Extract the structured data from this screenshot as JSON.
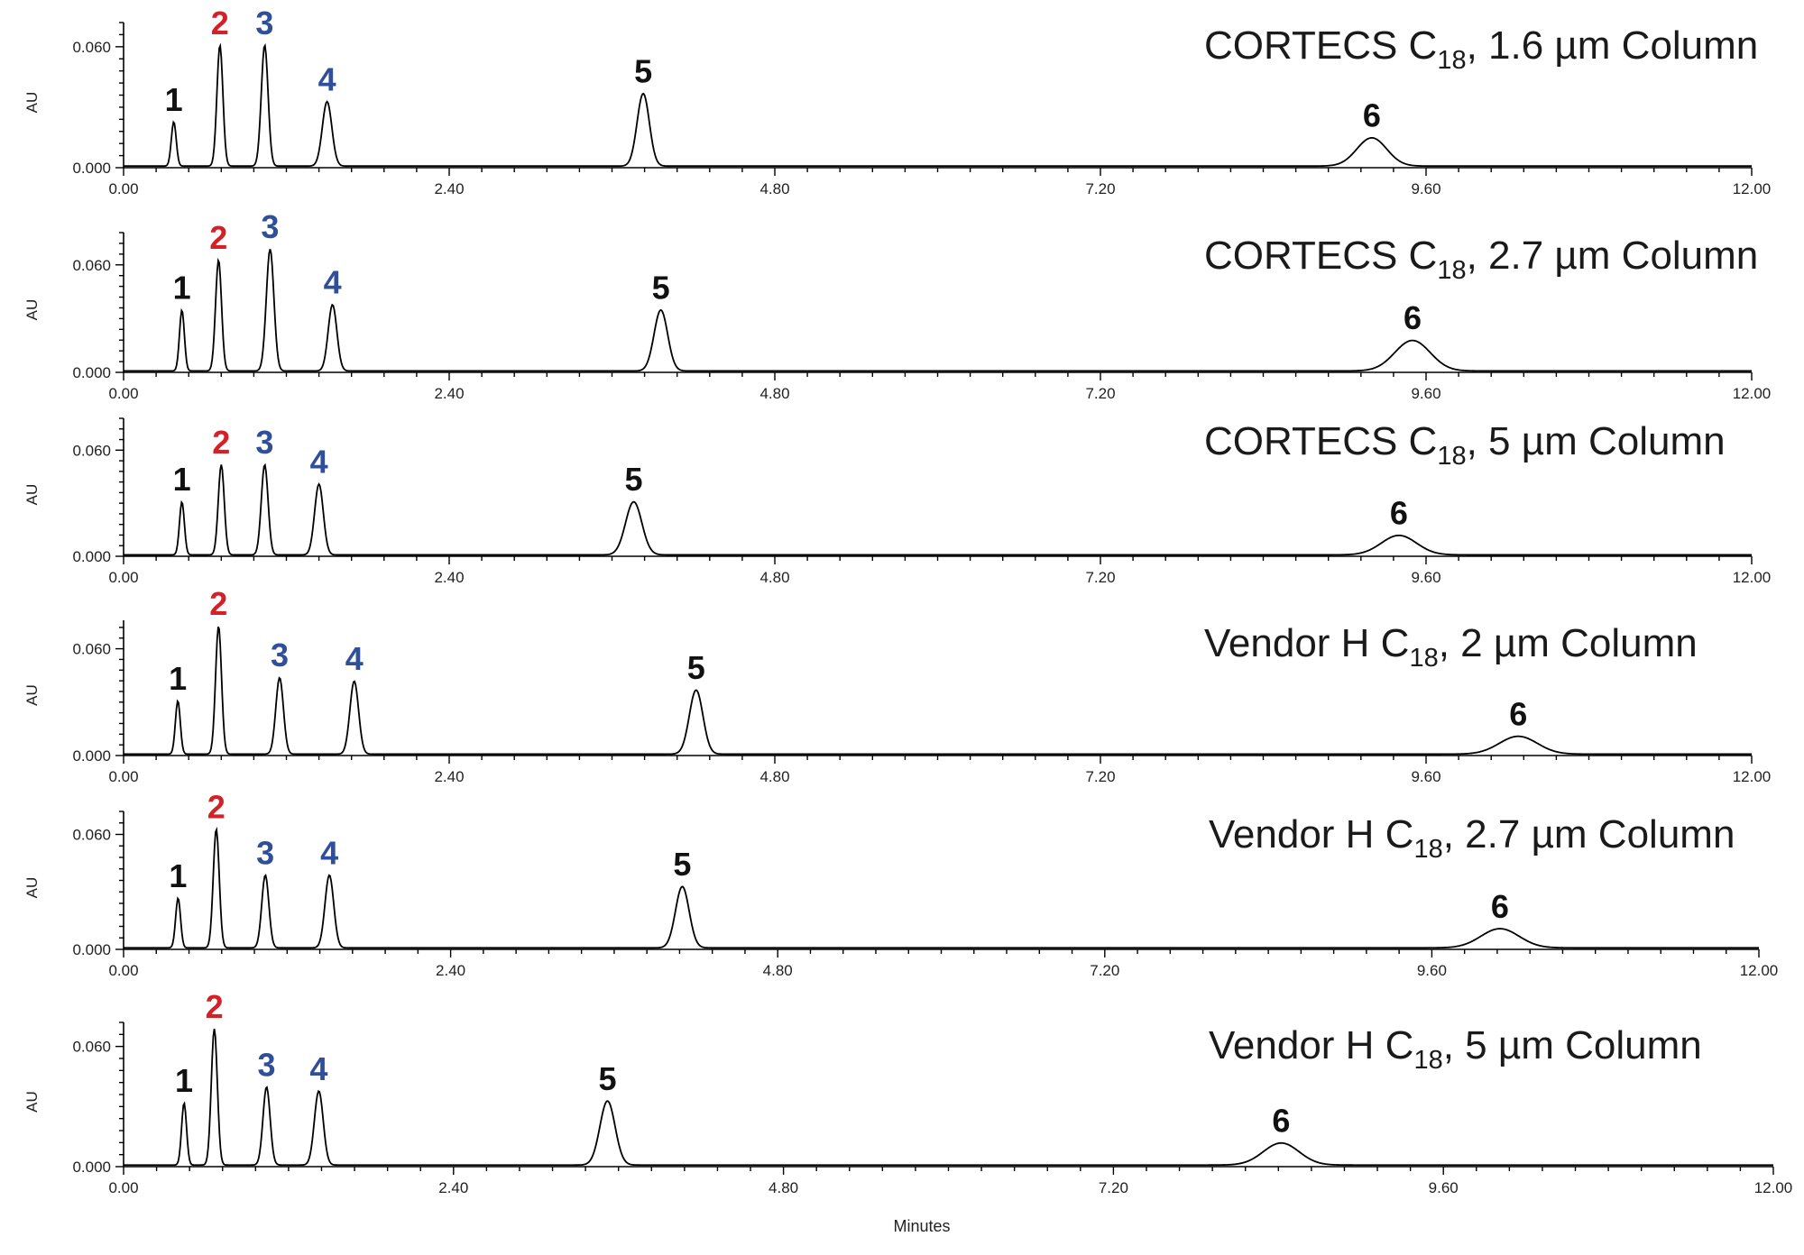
{
  "figure": {
    "xlabel": "Minutes",
    "ylabel": "AU",
    "colors": {
      "black": "#111111",
      "red": "#d42027",
      "blue": "#2f4f9a"
    }
  },
  "chart_data": [
    {
      "type": "line",
      "title": "CORTECS C18, 1.6 µm Column",
      "title_main": "CORTECS C",
      "title_sub": "18",
      "title_rest": ", 1.6 µm Column",
      "ylabel": "AU",
      "xlim": [
        0,
        12
      ],
      "ylim": [
        0,
        0.072
      ],
      "xticks": [
        "0.00",
        "2.40",
        "4.80",
        "7.20",
        "9.60",
        "12.00"
      ],
      "yticks": [
        "0.000",
        "0.060"
      ],
      "peaks": [
        {
          "label": "1",
          "color": "black",
          "rt": 0.37,
          "height": 0.022,
          "width": 0.018
        },
        {
          "label": "2",
          "color": "red",
          "rt": 0.71,
          "height": 0.06,
          "width": 0.022
        },
        {
          "label": "3",
          "color": "blue",
          "rt": 1.04,
          "height": 0.06,
          "width": 0.025
        },
        {
          "label": "4",
          "color": "blue",
          "rt": 1.5,
          "height": 0.032,
          "width": 0.035
        },
        {
          "label": "5",
          "color": "black",
          "rt": 3.83,
          "height": 0.036,
          "width": 0.045
        },
        {
          "label": "6",
          "color": "black",
          "rt": 9.2,
          "height": 0.014,
          "width": 0.11
        }
      ]
    },
    {
      "type": "line",
      "title": "CORTECS C18, 2.7 µm Column",
      "title_main": "CORTECS C",
      "title_sub": "18",
      "title_rest": ", 2.7 µm Column",
      "ylabel": "AU",
      "xlim": [
        0,
        12
      ],
      "ylim": [
        0,
        0.078
      ],
      "xticks": [
        "0.00",
        "2.40",
        "4.80",
        "7.20",
        "9.60",
        "12.00"
      ],
      "yticks": [
        "0.000",
        "0.060"
      ],
      "peaks": [
        {
          "label": "1",
          "color": "black",
          "rt": 0.43,
          "height": 0.034,
          "width": 0.018
        },
        {
          "label": "2",
          "color": "red",
          "rt": 0.7,
          "height": 0.062,
          "width": 0.022
        },
        {
          "label": "3",
          "color": "blue",
          "rt": 1.08,
          "height": 0.068,
          "width": 0.028
        },
        {
          "label": "4",
          "color": "blue",
          "rt": 1.54,
          "height": 0.037,
          "width": 0.032
        },
        {
          "label": "5",
          "color": "black",
          "rt": 3.96,
          "height": 0.034,
          "width": 0.05
        },
        {
          "label": "6",
          "color": "black",
          "rt": 9.5,
          "height": 0.017,
          "width": 0.13
        }
      ]
    },
    {
      "type": "line",
      "title": "CORTECS C18, 5 µm Column",
      "title_main": "CORTECS C",
      "title_sub": "18",
      "title_rest": ", 5 µm Column",
      "ylabel": "AU",
      "xlim": [
        0,
        12
      ],
      "ylim": [
        0,
        0.078
      ],
      "xticks": [
        "0.00",
        "2.40",
        "4.80",
        "7.20",
        "9.60",
        "12.00"
      ],
      "yticks": [
        "0.000",
        "0.060"
      ],
      "peaks": [
        {
          "label": "1",
          "color": "black",
          "rt": 0.43,
          "height": 0.03,
          "width": 0.018
        },
        {
          "label": "2",
          "color": "red",
          "rt": 0.72,
          "height": 0.051,
          "width": 0.022
        },
        {
          "label": "3",
          "color": "blue",
          "rt": 1.04,
          "height": 0.051,
          "width": 0.025
        },
        {
          "label": "4",
          "color": "blue",
          "rt": 1.44,
          "height": 0.04,
          "width": 0.032
        },
        {
          "label": "5",
          "color": "black",
          "rt": 3.76,
          "height": 0.03,
          "width": 0.06
        },
        {
          "label": "6",
          "color": "black",
          "rt": 9.4,
          "height": 0.011,
          "width": 0.13
        }
      ]
    },
    {
      "type": "line",
      "title": "Vendor H C18, 2 µm Column",
      "title_main": "Vendor H C",
      "title_sub": "18",
      "title_rest": ", 2 µm Column",
      "ylabel": "AU",
      "xlim": [
        0,
        12
      ],
      "ylim": [
        0,
        0.076
      ],
      "xticks": [
        "0.00",
        "2.40",
        "4.80",
        "7.20",
        "9.60",
        "12.00"
      ],
      "yticks": [
        "0.000",
        "0.060"
      ],
      "peaks": [
        {
          "label": "1",
          "color": "black",
          "rt": 0.4,
          "height": 0.03,
          "width": 0.018
        },
        {
          "label": "2",
          "color": "red",
          "rt": 0.7,
          "height": 0.072,
          "width": 0.022
        },
        {
          "label": "3",
          "color": "blue",
          "rt": 1.15,
          "height": 0.043,
          "width": 0.028
        },
        {
          "label": "4",
          "color": "blue",
          "rt": 1.7,
          "height": 0.041,
          "width": 0.032
        },
        {
          "label": "5",
          "color": "black",
          "rt": 4.22,
          "height": 0.036,
          "width": 0.05
        },
        {
          "label": "6",
          "color": "black",
          "rt": 10.28,
          "height": 0.01,
          "width": 0.14
        }
      ]
    },
    {
      "type": "line",
      "title": "Vendor H C18, 2.7 µm Column",
      "title_main": "Vendor H C",
      "title_sub": "18",
      "title_rest": ", 2.7 µm Column",
      "ylabel": "AU",
      "xlim": [
        0,
        12
      ],
      "ylim": [
        0,
        0.072
      ],
      "xticks": [
        "0.00",
        "2.40",
        "4.80",
        "7.20",
        "9.60",
        "12.00"
      ],
      "yticks": [
        "0.000",
        "0.060"
      ],
      "peaks": [
        {
          "label": "1",
          "color": "black",
          "rt": 0.4,
          "height": 0.026,
          "width": 0.018
        },
        {
          "label": "2",
          "color": "red",
          "rt": 0.68,
          "height": 0.062,
          "width": 0.022
        },
        {
          "label": "3",
          "color": "blue",
          "rt": 1.04,
          "height": 0.038,
          "width": 0.026
        },
        {
          "label": "4",
          "color": "blue",
          "rt": 1.51,
          "height": 0.038,
          "width": 0.032
        },
        {
          "label": "5",
          "color": "black",
          "rt": 4.1,
          "height": 0.032,
          "width": 0.05
        },
        {
          "label": "6",
          "color": "black",
          "rt": 10.1,
          "height": 0.01,
          "width": 0.14
        }
      ]
    },
    {
      "type": "line",
      "title": "Vendor H C18, 5 µm Column",
      "title_main": "Vendor H C",
      "title_sub": "18",
      "title_rest": ", 5 µm Column",
      "ylabel": "AU",
      "xlabel": "Minutes",
      "xlim": [
        0,
        12
      ],
      "ylim": [
        0,
        0.072
      ],
      "xticks": [
        "0.00",
        "2.40",
        "4.80",
        "7.20",
        "9.60",
        "12.00"
      ],
      "yticks": [
        "0.000",
        "0.060"
      ],
      "peaks": [
        {
          "label": "1",
          "color": "black",
          "rt": 0.44,
          "height": 0.031,
          "width": 0.018
        },
        {
          "label": "2",
          "color": "red",
          "rt": 0.66,
          "height": 0.068,
          "width": 0.022
        },
        {
          "label": "3",
          "color": "blue",
          "rt": 1.04,
          "height": 0.039,
          "width": 0.026
        },
        {
          "label": "4",
          "color": "blue",
          "rt": 1.42,
          "height": 0.037,
          "width": 0.032
        },
        {
          "label": "5",
          "color": "black",
          "rt": 3.52,
          "height": 0.032,
          "width": 0.055
        },
        {
          "label": "6",
          "color": "black",
          "rt": 8.42,
          "height": 0.011,
          "width": 0.13
        }
      ]
    }
  ]
}
